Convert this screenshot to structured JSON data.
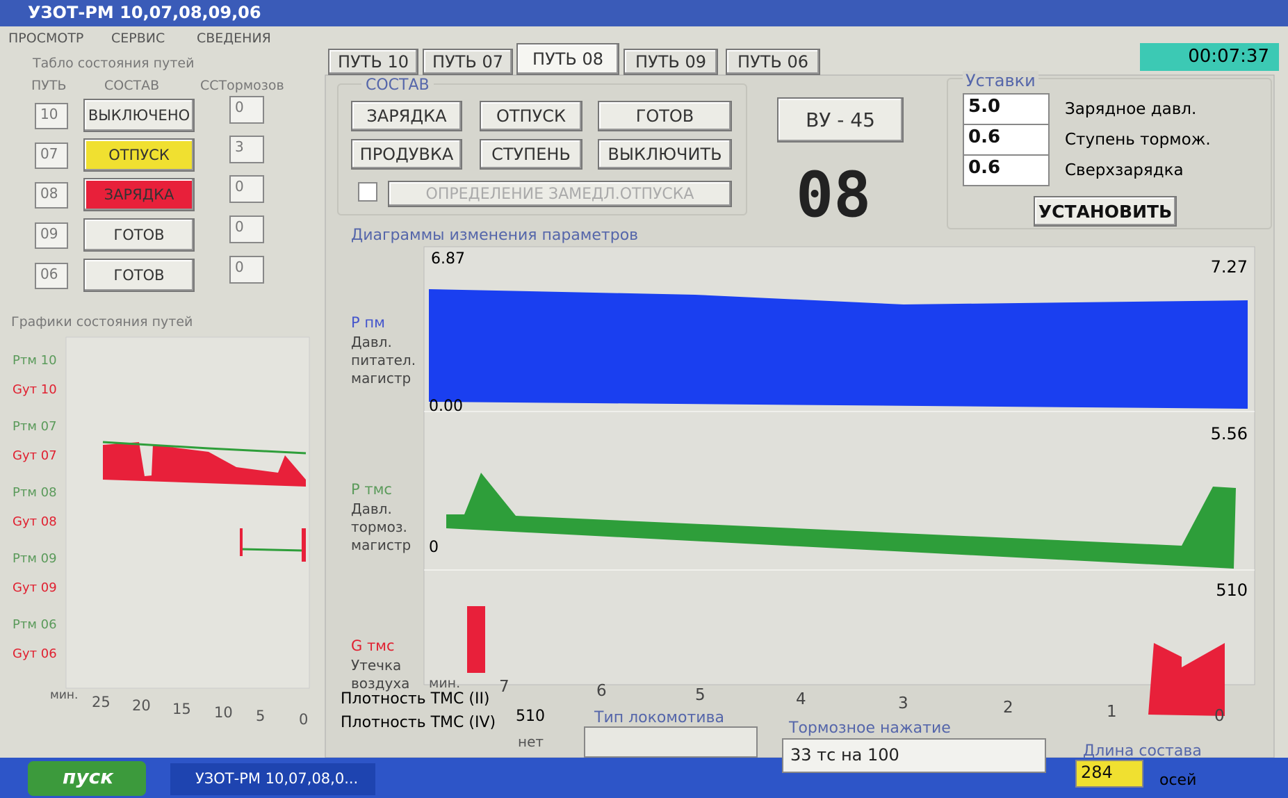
{
  "window": {
    "title": "УЗОТ-РМ 10,07,08,09,06",
    "menu": [
      "ПРОСМОТР",
      "СЕРВИС",
      "СВЕДЕНИЯ"
    ]
  },
  "status_table": {
    "title": "Табло состояния путей",
    "headers": [
      "ПУТЬ",
      "СОСТАВ",
      "ССТормозов"
    ],
    "rows": [
      [
        "10",
        "ВЫКЛЮЧЕНО",
        "0"
      ],
      [
        "07",
        "ОТПУСК",
        "3"
      ],
      [
        "08",
        "ЗАРЯДКА",
        "0"
      ],
      [
        "09",
        "ГОТОВ",
        "0"
      ],
      [
        "06",
        "ГОТОВ",
        "0"
      ]
    ]
  },
  "track_charts": {
    "title": "Графики состояния путей",
    "labels": [
      [
        "Ртм 10",
        "Gут 10"
      ],
      [
        "Ртм 07",
        "Gут 07"
      ],
      [
        "Ртм 08",
        "Gут 08"
      ],
      [
        "Ртм 09",
        "Gут 09"
      ],
      [
        "Ртм 06",
        "Gут 06"
      ]
    ],
    "unit": "мин.",
    "ticks": [
      "25",
      "20",
      "15",
      "10",
      "5",
      "0"
    ]
  },
  "tabs": [
    "ПУТЬ 10",
    "ПУТЬ 07",
    "ПУТЬ 08",
    "ПУТЬ 09",
    "ПУТЬ 06"
  ],
  "active_tab": 2,
  "clock": "00:07:37",
  "sostav": {
    "title": "СОСТАВ",
    "buttons": [
      "ЗАРЯДКА",
      "ОТПУСК",
      "ГОТОВ",
      "ПРОДУВКА",
      "СТУПЕНЬ",
      "ВЫКЛЮЧИТЬ"
    ],
    "checkbox": "ОПРЕДЕЛЕНИЕ ЗАМЕДЛ.ОТПУСКА"
  },
  "vu_button": "ВУ - 45",
  "track_number": "08",
  "settings": {
    "title": "Уставки",
    "rows": [
      [
        "5.0",
        "Зарядное давл."
      ],
      [
        "0.6",
        "Ступень тормож."
      ],
      [
        "0.6",
        "Сверхзарядка"
      ]
    ],
    "button": "УСТАНОВИТЬ"
  },
  "diagrams": {
    "title": "Диаграммы изменения параметров",
    "panels": [
      {
        "name": "Р пм",
        "desc": [
          "Давл.",
          "питател.",
          "магистр"
        ],
        "top_left": "6.87",
        "top_right": "7.27",
        "bottom": "0.00"
      },
      {
        "name": "Р тмс",
        "desc": [
          "Давл.",
          "тормоз.",
          "магистр"
        ],
        "top_right": "5.56",
        "bottom": "0"
      },
      {
        "name": "G тмс",
        "desc": [
          "Утечка",
          "воздуха"
        ],
        "top_right": "510"
      }
    ],
    "unit": "мин.",
    "ticks": [
      "7",
      "6",
      "5",
      "4",
      "3",
      "2",
      "1",
      "0"
    ]
  },
  "footer": {
    "density_2_label": "Плотность ТМС (II)",
    "density_2_value": "510",
    "density_4_label": "Плотность ТМС (IV)",
    "density_4_value": "нет",
    "loco_label": "Тип локомотива",
    "brake_label": "Тормозное нажатие",
    "brake_value": "33 тс на 100",
    "length_label": "Длина состава",
    "length_value": "284",
    "length_unit": "осей"
  },
  "taskbar": {
    "start": "пуск",
    "task": "УЗОТ-РМ 10,07,08,0..."
  }
}
